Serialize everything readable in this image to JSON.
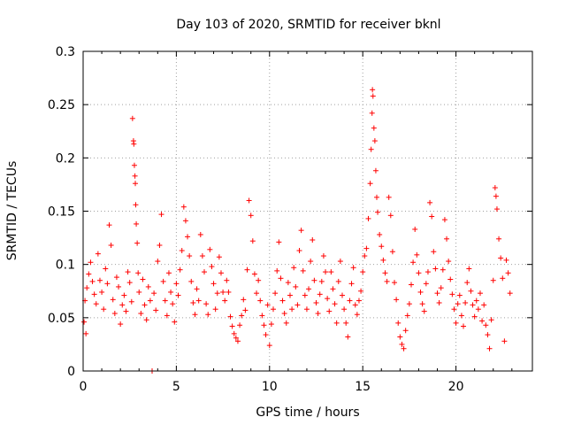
{
  "chart_data": {
    "type": "scatter",
    "title": "Day 103 of 2020, SRMTID for receiver bknl",
    "xlabel": "GPS time / hours",
    "ylabel": "SRMTID / TECUs",
    "xlim": [
      0,
      24.1
    ],
    "ylim": [
      0,
      0.3
    ],
    "xticks": [
      0,
      5,
      10,
      15,
      20
    ],
    "xtick_labels": [
      "0",
      "5",
      "10",
      "15",
      "20"
    ],
    "yticks": [
      0,
      0.05,
      0.1,
      0.15,
      0.2,
      0.25,
      0.3
    ],
    "ytick_labels": [
      "0",
      "0.05",
      "0.1",
      "0.15",
      "0.2",
      "0.25",
      "0.3"
    ],
    "grid": true,
    "marker": "+",
    "color": "#ff0000",
    "series": [
      {
        "name": "SRMTID",
        "points": [
          [
            0.05,
            0.046
          ],
          [
            0.1,
            0.066
          ],
          [
            0.15,
            0.035
          ],
          [
            0.2,
            0.078
          ],
          [
            0.3,
            0.091
          ],
          [
            0.4,
            0.102
          ],
          [
            0.5,
            0.084
          ],
          [
            0.6,
            0.072
          ],
          [
            0.7,
            0.063
          ],
          [
            0.8,
            0.11
          ],
          [
            0.9,
            0.085
          ],
          [
            1.0,
            0.074
          ],
          [
            1.1,
            0.058
          ],
          [
            1.2,
            0.096
          ],
          [
            1.3,
            0.082
          ],
          [
            1.4,
            0.137
          ],
          [
            1.5,
            0.118
          ],
          [
            1.6,
            0.067
          ],
          [
            1.7,
            0.054
          ],
          [
            1.8,
            0.088
          ],
          [
            1.9,
            0.079
          ],
          [
            2.0,
            0.044
          ],
          [
            2.1,
            0.062
          ],
          [
            2.2,
            0.071
          ],
          [
            2.3,
            0.056
          ],
          [
            2.4,
            0.093
          ],
          [
            2.5,
            0.083
          ],
          [
            2.6,
            0.065
          ],
          [
            2.65,
            0.237
          ],
          [
            2.7,
            0.216
          ],
          [
            2.72,
            0.213
          ],
          [
            2.75,
            0.193
          ],
          [
            2.78,
            0.183
          ],
          [
            2.8,
            0.176
          ],
          [
            2.82,
            0.156
          ],
          [
            2.85,
            0.138
          ],
          [
            2.9,
            0.12
          ],
          [
            2.95,
            0.092
          ],
          [
            3.0,
            0.074
          ],
          [
            3.1,
            0.054
          ],
          [
            3.2,
            0.086
          ],
          [
            3.3,
            0.062
          ],
          [
            3.4,
            0.048
          ],
          [
            3.5,
            0.079
          ],
          [
            3.6,
            0.066
          ],
          [
            3.7,
            0.0
          ],
          [
            3.8,
            0.073
          ],
          [
            3.9,
            0.057
          ],
          [
            4.0,
            0.103
          ],
          [
            4.1,
            0.118
          ],
          [
            4.2,
            0.147
          ],
          [
            4.3,
            0.084
          ],
          [
            4.4,
            0.066
          ],
          [
            4.5,
            0.052
          ],
          [
            4.6,
            0.092
          ],
          [
            4.7,
            0.074
          ],
          [
            4.8,
            0.063
          ],
          [
            4.9,
            0.046
          ],
          [
            5.0,
            0.082
          ],
          [
            5.1,
            0.071
          ],
          [
            5.2,
            0.095
          ],
          [
            5.3,
            0.113
          ],
          [
            5.4,
            0.154
          ],
          [
            5.5,
            0.141
          ],
          [
            5.6,
            0.126
          ],
          [
            5.7,
            0.108
          ],
          [
            5.8,
            0.084
          ],
          [
            5.9,
            0.064
          ],
          [
            6.0,
            0.053
          ],
          [
            6.1,
            0.077
          ],
          [
            6.2,
            0.066
          ],
          [
            6.3,
            0.128
          ],
          [
            6.4,
            0.108
          ],
          [
            6.5,
            0.093
          ],
          [
            6.6,
            0.063
          ],
          [
            6.7,
            0.053
          ],
          [
            6.8,
            0.114
          ],
          [
            6.9,
            0.098
          ],
          [
            7.0,
            0.082
          ],
          [
            7.1,
            0.058
          ],
          [
            7.2,
            0.073
          ],
          [
            7.3,
            0.107
          ],
          [
            7.4,
            0.092
          ],
          [
            7.5,
            0.074
          ],
          [
            7.6,
            0.066
          ],
          [
            7.7,
            0.085
          ],
          [
            7.8,
            0.074
          ],
          [
            7.9,
            0.051
          ],
          [
            8.0,
            0.042
          ],
          [
            8.1,
            0.035
          ],
          [
            8.2,
            0.031
          ],
          [
            8.3,
            0.028
          ],
          [
            8.4,
            0.043
          ],
          [
            8.5,
            0.052
          ],
          [
            8.6,
            0.067
          ],
          [
            8.7,
            0.057
          ],
          [
            8.8,
            0.095
          ],
          [
            8.9,
            0.16
          ],
          [
            9.0,
            0.146
          ],
          [
            9.1,
            0.122
          ],
          [
            9.2,
            0.091
          ],
          [
            9.3,
            0.073
          ],
          [
            9.4,
            0.085
          ],
          [
            9.5,
            0.066
          ],
          [
            9.6,
            0.052
          ],
          [
            9.7,
            0.043
          ],
          [
            9.8,
            0.034
          ],
          [
            9.9,
            0.062
          ],
          [
            10.0,
            0.024
          ],
          [
            10.1,
            0.044
          ],
          [
            10.2,
            0.058
          ],
          [
            10.3,
            0.073
          ],
          [
            10.4,
            0.094
          ],
          [
            10.5,
            0.121
          ],
          [
            10.6,
            0.087
          ],
          [
            10.7,
            0.066
          ],
          [
            10.8,
            0.054
          ],
          [
            10.9,
            0.045
          ],
          [
            11.0,
            0.083
          ],
          [
            11.1,
            0.071
          ],
          [
            11.2,
            0.058
          ],
          [
            11.3,
            0.097
          ],
          [
            11.4,
            0.079
          ],
          [
            11.5,
            0.062
          ],
          [
            11.6,
            0.113
          ],
          [
            11.7,
            0.132
          ],
          [
            11.8,
            0.094
          ],
          [
            11.9,
            0.071
          ],
          [
            12.0,
            0.058
          ],
          [
            12.1,
            0.077
          ],
          [
            12.2,
            0.103
          ],
          [
            12.3,
            0.123
          ],
          [
            12.4,
            0.085
          ],
          [
            12.5,
            0.064
          ],
          [
            12.6,
            0.054
          ],
          [
            12.7,
            0.072
          ],
          [
            12.8,
            0.084
          ],
          [
            12.9,
            0.108
          ],
          [
            13.0,
            0.093
          ],
          [
            13.1,
            0.068
          ],
          [
            13.2,
            0.056
          ],
          [
            13.3,
            0.093
          ],
          [
            13.4,
            0.077
          ],
          [
            13.5,
            0.063
          ],
          [
            13.6,
            0.045
          ],
          [
            13.7,
            0.084
          ],
          [
            13.8,
            0.103
          ],
          [
            13.9,
            0.071
          ],
          [
            14.0,
            0.058
          ],
          [
            14.1,
            0.045
          ],
          [
            14.2,
            0.032
          ],
          [
            14.3,
            0.066
          ],
          [
            14.4,
            0.082
          ],
          [
            14.5,
            0.097
          ],
          [
            14.6,
            0.062
          ],
          [
            14.7,
            0.053
          ],
          [
            14.8,
            0.066
          ],
          [
            14.9,
            0.075
          ],
          [
            15.0,
            0.093
          ],
          [
            15.1,
            0.108
          ],
          [
            15.2,
            0.115
          ],
          [
            15.3,
            0.143
          ],
          [
            15.4,
            0.176
          ],
          [
            15.45,
            0.208
          ],
          [
            15.5,
            0.242
          ],
          [
            15.52,
            0.264
          ],
          [
            15.55,
            0.258
          ],
          [
            15.6,
            0.228
          ],
          [
            15.65,
            0.216
          ],
          [
            15.7,
            0.188
          ],
          [
            15.75,
            0.163
          ],
          [
            15.8,
            0.149
          ],
          [
            15.9,
            0.128
          ],
          [
            16.0,
            0.117
          ],
          [
            16.1,
            0.104
          ],
          [
            16.2,
            0.092
          ],
          [
            16.3,
            0.084
          ],
          [
            16.4,
            0.163
          ],
          [
            16.5,
            0.146
          ],
          [
            16.6,
            0.112
          ],
          [
            16.7,
            0.083
          ],
          [
            16.8,
            0.067
          ],
          [
            16.9,
            0.045
          ],
          [
            17.0,
            0.032
          ],
          [
            17.1,
            0.025
          ],
          [
            17.2,
            0.021
          ],
          [
            17.3,
            0.038
          ],
          [
            17.4,
            0.052
          ],
          [
            17.5,
            0.063
          ],
          [
            17.6,
            0.081
          ],
          [
            17.7,
            0.102
          ],
          [
            17.8,
            0.133
          ],
          [
            17.9,
            0.109
          ],
          [
            18.0,
            0.092
          ],
          [
            18.1,
            0.074
          ],
          [
            18.2,
            0.063
          ],
          [
            18.3,
            0.056
          ],
          [
            18.4,
            0.082
          ],
          [
            18.5,
            0.093
          ],
          [
            18.6,
            0.158
          ],
          [
            18.7,
            0.145
          ],
          [
            18.8,
            0.112
          ],
          [
            18.9,
            0.096
          ],
          [
            19.0,
            0.073
          ],
          [
            19.1,
            0.064
          ],
          [
            19.2,
            0.078
          ],
          [
            19.3,
            0.095
          ],
          [
            19.4,
            0.142
          ],
          [
            19.5,
            0.124
          ],
          [
            19.6,
            0.103
          ],
          [
            19.7,
            0.086
          ],
          [
            19.8,
            0.072
          ],
          [
            19.9,
            0.058
          ],
          [
            20.0,
            0.045
          ],
          [
            20.1,
            0.063
          ],
          [
            20.2,
            0.071
          ],
          [
            20.3,
            0.052
          ],
          [
            20.4,
            0.042
          ],
          [
            20.5,
            0.064
          ],
          [
            20.6,
            0.083
          ],
          [
            20.7,
            0.096
          ],
          [
            20.8,
            0.075
          ],
          [
            20.9,
            0.062
          ],
          [
            21.0,
            0.051
          ],
          [
            21.1,
            0.066
          ],
          [
            21.2,
            0.058
          ],
          [
            21.3,
            0.073
          ],
          [
            21.4,
            0.047
          ],
          [
            21.5,
            0.062
          ],
          [
            21.6,
            0.043
          ],
          [
            21.7,
            0.034
          ],
          [
            21.8,
            0.021
          ],
          [
            21.9,
            0.048
          ],
          [
            22.0,
            0.085
          ],
          [
            22.1,
            0.172
          ],
          [
            22.15,
            0.164
          ],
          [
            22.2,
            0.152
          ],
          [
            22.3,
            0.124
          ],
          [
            22.4,
            0.106
          ],
          [
            22.5,
            0.087
          ],
          [
            22.6,
            0.028
          ],
          [
            22.7,
            0.104
          ],
          [
            22.8,
            0.092
          ],
          [
            22.9,
            0.073
          ]
        ]
      }
    ]
  }
}
